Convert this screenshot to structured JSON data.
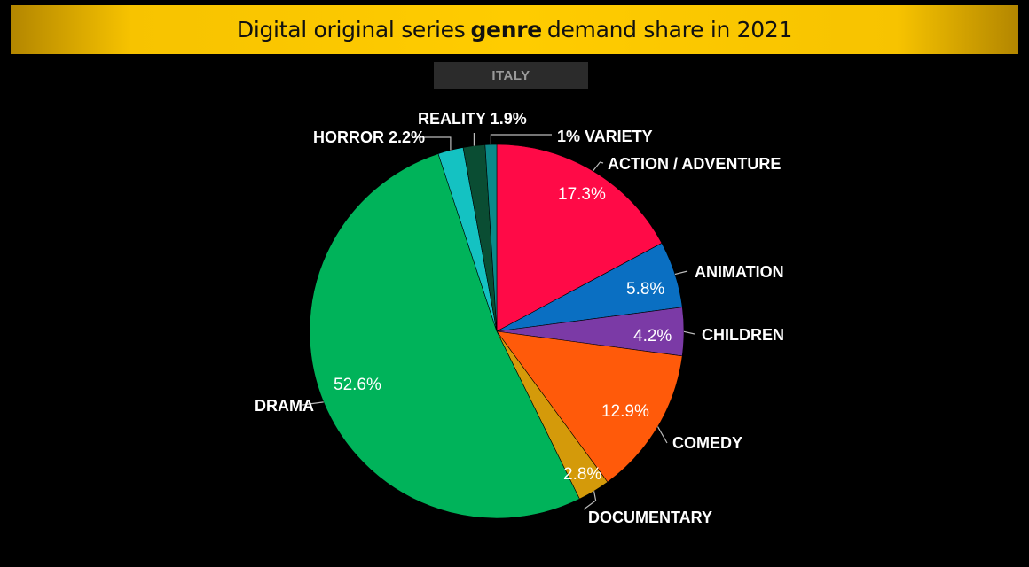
{
  "header": {
    "title_pre": "Digital original series",
    "title_bold": "genre",
    "title_post": "demand share in 2021"
  },
  "region": "ITALY",
  "chart_data": {
    "type": "pie",
    "title": "Digital original series genre demand share in 2021",
    "subtitle": "ITALY",
    "slices": [
      {
        "label": "ACTION / ADVENTURE",
        "value": 17.3,
        "display": "17.3%",
        "color": "#ff0a47"
      },
      {
        "label": "ANIMATION",
        "value": 5.8,
        "display": "5.8%",
        "color": "#0a6fc2"
      },
      {
        "label": "CHILDREN",
        "value": 4.2,
        "display": "4.2%",
        "color": "#7b3aa6"
      },
      {
        "label": "COMEDY",
        "value": 12.9,
        "display": "12.9%",
        "color": "#ff5a0a"
      },
      {
        "label": "DOCUMENTARY",
        "value": 2.8,
        "display": "2.8%",
        "color": "#d49a0a"
      },
      {
        "label": "DRAMA",
        "value": 52.6,
        "display": "52.6%",
        "color": "#00b35a"
      },
      {
        "label": "HORROR",
        "value": 2.2,
        "display": "2.2%",
        "color": "#14c2c2"
      },
      {
        "label": "REALITY",
        "value": 1.9,
        "display": "1.9%",
        "color": "#0a4d33"
      },
      {
        "label": "VARIETY",
        "value": 1.0,
        "display": "1%",
        "color": "#0a8a8a"
      }
    ],
    "texts": {
      "action": "ACTION / ADVENTURE",
      "animation": "ANIMATION",
      "children": "CHILDREN",
      "comedy": "COMEDY",
      "documentary": "DOCUMENTARY",
      "drama": "DRAMA",
      "horror": "HORROR 2.2%",
      "reality": "REALITY 1.9%",
      "variety": "1% VARIETY",
      "p_action": "17.3%",
      "p_animation": "5.8%",
      "p_children": "4.2%",
      "p_comedy": "12.9%",
      "p_documentary": "2.8%",
      "p_drama": "52.6%"
    },
    "legend": "none"
  }
}
